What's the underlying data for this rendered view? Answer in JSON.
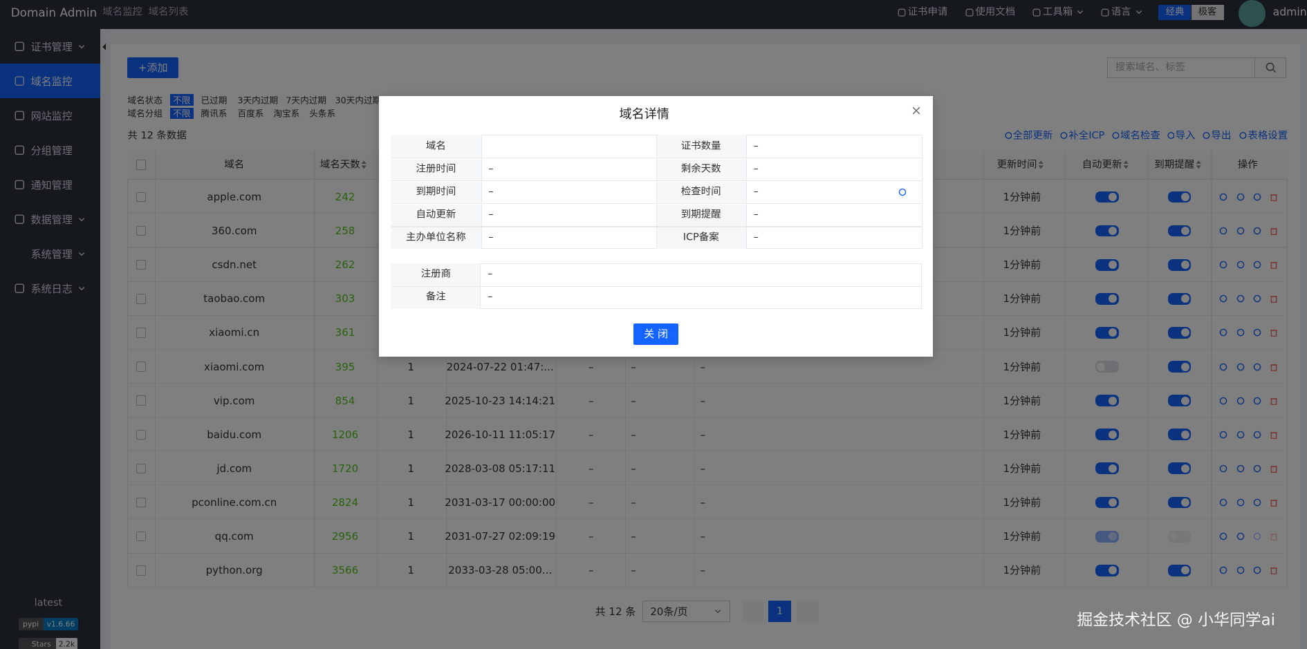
{
  "header": {
    "brand": "Domain Admin",
    "breadcrumb": [
      "域名监控",
      "域名列表"
    ],
    "separator": "/",
    "links": [
      "证书申请",
      "使用文档",
      "工具箱",
      "语言"
    ],
    "themes": [
      "经典",
      "极客"
    ],
    "active_theme": 0,
    "user": "admin"
  },
  "sidebar": {
    "menu": [
      {
        "label": "证书管理",
        "expand": true
      },
      {
        "label": "域名监控",
        "active": true
      },
      {
        "label": "网站监控"
      },
      {
        "label": "分组管理"
      },
      {
        "label": "通知管理"
      },
      {
        "label": "数据管理",
        "expand": true
      },
      {
        "label": "系统管理",
        "expand": true
      },
      {
        "label": "系统日志",
        "expand": true
      }
    ],
    "version": "latest",
    "badges": [
      [
        "pypi",
        "v1.6.66"
      ],
      [
        "Stars",
        "2.2k"
      ]
    ]
  },
  "toolbar": {
    "add": "+添加",
    "search_placeholder": "搜索域名、标签"
  },
  "filters": [
    {
      "label": "域名状态",
      "options": [
        "不限",
        "已过期",
        "3天内过期",
        "7天内过期",
        "30天内过期"
      ],
      "selected": 0
    },
    {
      "label": "域名分组",
      "options": [
        "不限",
        "腾讯系",
        "百度系",
        "淘宝系",
        "头条系"
      ],
      "selected": 0
    }
  ],
  "total": "共 12 条数据",
  "actions": [
    "全部更新",
    "补全ICP",
    "域名检查",
    "导入",
    "导出",
    "表格设置"
  ],
  "table": {
    "columns": [
      {
        "label": "域名"
      },
      {
        "label": "域名天数",
        "sortable": true
      },
      {
        "label": "更新时间",
        "sortable": true
      },
      {
        "label": "自动更新",
        "sortable": true
      },
      {
        "label": "到期提醒",
        "sortable": true
      },
      {
        "label": "操作"
      }
    ],
    "rows": [
      {
        "domain": "apple.com",
        "days": 242,
        "updated": "1分钟前",
        "auto_update": true,
        "expire_alert": true
      },
      {
        "domain": "360.com",
        "days": 258,
        "updated": "1分钟前",
        "auto_update": true,
        "expire_alert": true
      },
      {
        "domain": "csdn.net",
        "days": 262,
        "updated": "1分钟前",
        "auto_update": true,
        "expire_alert": true
      },
      {
        "domain": "taobao.com",
        "days": 303,
        "updated": "1分钟前",
        "auto_update": true,
        "expire_alert": true
      },
      {
        "domain": "xiaomi.cn",
        "days": 361,
        "updated": "1分钟前",
        "auto_update": true,
        "expire_alert": true
      },
      {
        "domain": "xiaomi.com",
        "days": 395,
        "count": 1,
        "expire_time": "2024-07-22 01:47:...",
        "extra": [
          "–",
          "–",
          "–"
        ],
        "updated": "1分钟前",
        "auto_update": false,
        "expire_alert": true
      },
      {
        "domain": "vip.com",
        "days": 854,
        "count": 1,
        "expire_time": "2025-10-23 14:14:21",
        "extra": [
          "–",
          "–",
          "–"
        ],
        "updated": "1分钟前",
        "auto_update": true,
        "expire_alert": true
      },
      {
        "domain": "baidu.com",
        "days": 1206,
        "count": 1,
        "expire_time": "2026-10-11 11:05:17",
        "extra": [
          "–",
          "–",
          "–"
        ],
        "updated": "1分钟前",
        "auto_update": true,
        "expire_alert": true
      },
      {
        "domain": "jd.com",
        "days": 1720,
        "count": 1,
        "expire_time": "2028-03-08 05:17:11",
        "extra": [
          "–",
          "–",
          "–"
        ],
        "updated": "1分钟前",
        "auto_update": true,
        "expire_alert": true
      },
      {
        "domain": "pconline.com.cn",
        "days": 2824,
        "count": 1,
        "expire_time": "2031-03-17 00:00:00",
        "extra": [
          "–",
          "–",
          "–"
        ],
        "updated": "1分钟前",
        "auto_update": true,
        "expire_alert": true
      },
      {
        "domain": "qq.com",
        "days": 2956,
        "count": 1,
        "expire_time": "2031-07-27 02:09:19",
        "extra": [
          "–",
          "–",
          "–"
        ],
        "updated": "1分钟前",
        "auto_update": true,
        "expire_alert": false,
        "disabled": true
      },
      {
        "domain": "python.org",
        "days": 3566,
        "count": 1,
        "expire_time": "2033-03-28 05:00...",
        "extra": [
          "–",
          "–",
          "–"
        ],
        "updated": "1分钟前",
        "auto_update": true,
        "expire_alert": true
      }
    ]
  },
  "pagination": {
    "total": "共 12 条",
    "page_size": "20条/页",
    "current": 1
  },
  "modal": {
    "title": "域名详情",
    "grid": [
      [
        {
          "label": "域名"
        },
        {
          "label": "证书数量",
          "value": "–"
        }
      ],
      [
        {
          "label": "注册时间",
          "value": "–"
        },
        {
          "label": "剩余天数",
          "value": "–"
        }
      ],
      [
        {
          "label": "到期时间",
          "value": "–"
        },
        {
          "label": "检查时间",
          "value": "–",
          "refresh": true
        }
      ],
      [
        {
          "label": "自动更新",
          "value": "–"
        },
        {
          "label": "到期提醒",
          "value": "–"
        }
      ],
      [
        {
          "label": "主办单位名称",
          "value": "–"
        },
        {
          "label": "ICP备案",
          "value": "–"
        }
      ]
    ],
    "extra": [
      {
        "label": "注册商",
        "value": "–"
      },
      {
        "label": "备注",
        "value": "–"
      }
    ],
    "button": "关 闭"
  },
  "watermark": "掘金技术社区 @ 小华同学ai"
}
